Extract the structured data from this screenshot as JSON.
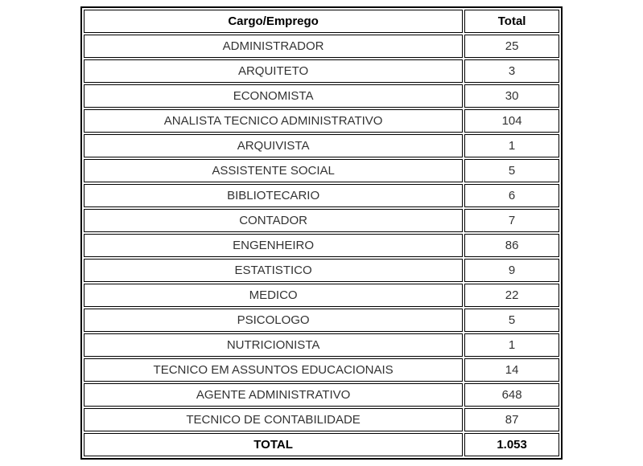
{
  "table": {
    "type": "table",
    "columns": [
      {
        "label": "Cargo/Emprego",
        "align": "center",
        "width_pct": 80
      },
      {
        "label": "Total",
        "align": "center",
        "width_pct": 20
      }
    ],
    "rows": [
      {
        "cargo": "ADMINISTRADOR",
        "total": "25"
      },
      {
        "cargo": "ARQUITETO",
        "total": "3"
      },
      {
        "cargo": "ECONOMISTA",
        "total": "30"
      },
      {
        "cargo": "ANALISTA TECNICO ADMINISTRATIVO",
        "total": "104"
      },
      {
        "cargo": "ARQUIVISTA",
        "total": "1"
      },
      {
        "cargo": "ASSISTENTE SOCIAL",
        "total": "5"
      },
      {
        "cargo": "BIBLIOTECARIO",
        "total": "6"
      },
      {
        "cargo": "CONTADOR",
        "total": "7"
      },
      {
        "cargo": "ENGENHEIRO",
        "total": "86"
      },
      {
        "cargo": "ESTATISTICO",
        "total": "9"
      },
      {
        "cargo": "MEDICO",
        "total": "22"
      },
      {
        "cargo": "PSICOLOGO",
        "total": "5"
      },
      {
        "cargo": "NUTRICIONISTA",
        "total": "1"
      },
      {
        "cargo": "TECNICO EM ASSUNTOS EDUCACIONAIS",
        "total": "14"
      },
      {
        "cargo": "AGENTE ADMINISTRATIVO",
        "total": "648"
      },
      {
        "cargo": "TECNICO DE CONTABILIDADE",
        "total": "87"
      }
    ],
    "footer": {
      "label": "TOTAL",
      "value": "1.053"
    },
    "styling": {
      "border_color": "#000000",
      "outer_border_width": 2,
      "cell_border_width": 1,
      "background_color": "#ffffff",
      "text_color": "#333333",
      "header_text_color": "#000000",
      "font_size": 15,
      "font_family": "Arial",
      "cell_spacing": 2
    }
  }
}
